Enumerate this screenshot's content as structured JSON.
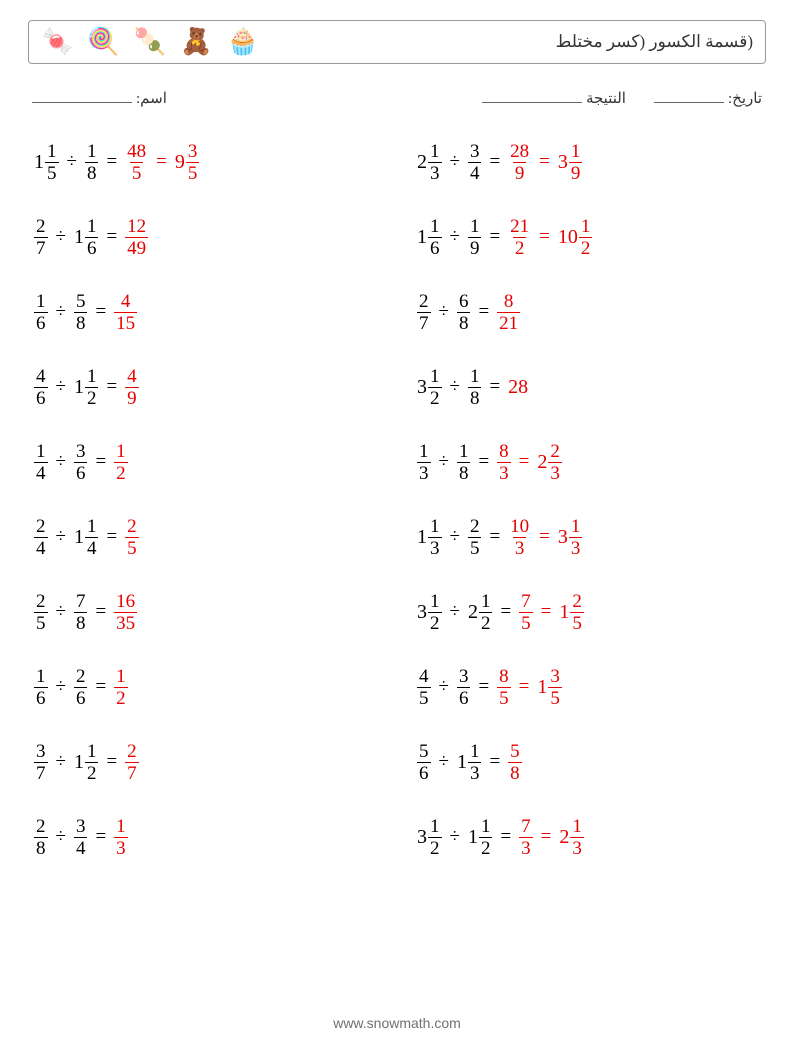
{
  "header": {
    "title": "(قسمة الكسور (كسر مختلط",
    "icons": [
      {
        "name": "candy-icon",
        "emoji": "🍬"
      },
      {
        "name": "wrapped-candy-icon",
        "emoji": "🍭"
      },
      {
        "name": "macaron-icon",
        "emoji": "🍡"
      },
      {
        "name": "teddy-bear-icon",
        "emoji": "🧸"
      },
      {
        "name": "cupcake-icon",
        "emoji": "🧁"
      }
    ]
  },
  "info": {
    "name_label": "اسم:",
    "date_label": "تاريخ:",
    "score_label": "النتيجة"
  },
  "footer": {
    "text": "www.snowmath.com"
  },
  "style": {
    "answer_color": "#e60000",
    "text_color": "#000000",
    "font_size_eq": 20
  },
  "division_sign": "÷",
  "equals_sign": "=",
  "problems": [
    [
      {
        "dividend": {
          "whole": 1,
          "num": 1,
          "den": 5
        },
        "divisor": {
          "num": 1,
          "den": 8
        },
        "answers": [
          {
            "num": 48,
            "den": 5
          },
          {
            "whole": 9,
            "num": 3,
            "den": 5
          }
        ]
      },
      {
        "dividend": {
          "whole": 2,
          "num": 1,
          "den": 3
        },
        "divisor": {
          "num": 3,
          "den": 4
        },
        "answers": [
          {
            "num": 28,
            "den": 9
          },
          {
            "whole": 3,
            "num": 1,
            "den": 9
          }
        ]
      }
    ],
    [
      {
        "dividend": {
          "num": 2,
          "den": 7
        },
        "divisor": {
          "whole": 1,
          "num": 1,
          "den": 6
        },
        "answers": [
          {
            "num": 12,
            "den": 49
          }
        ]
      },
      {
        "dividend": {
          "whole": 1,
          "num": 1,
          "den": 6
        },
        "divisor": {
          "num": 1,
          "den": 9
        },
        "answers": [
          {
            "num": 21,
            "den": 2
          },
          {
            "whole": 10,
            "num": 1,
            "den": 2
          }
        ]
      }
    ],
    [
      {
        "dividend": {
          "num": 1,
          "den": 6
        },
        "divisor": {
          "num": 5,
          "den": 8
        },
        "answers": [
          {
            "num": 4,
            "den": 15
          }
        ]
      },
      {
        "dividend": {
          "num": 2,
          "den": 7
        },
        "divisor": {
          "num": 6,
          "den": 8
        },
        "answers": [
          {
            "num": 8,
            "den": 21
          }
        ]
      }
    ],
    [
      {
        "dividend": {
          "num": 4,
          "den": 6
        },
        "divisor": {
          "whole": 1,
          "num": 1,
          "den": 2
        },
        "answers": [
          {
            "num": 4,
            "den": 9
          }
        ]
      },
      {
        "dividend": {
          "whole": 3,
          "num": 1,
          "den": 2
        },
        "divisor": {
          "num": 1,
          "den": 8
        },
        "answers": [
          {
            "int": 28
          }
        ]
      }
    ],
    [
      {
        "dividend": {
          "num": 1,
          "den": 4
        },
        "divisor": {
          "num": 3,
          "den": 6
        },
        "answers": [
          {
            "num": 1,
            "den": 2
          }
        ]
      },
      {
        "dividend": {
          "num": 1,
          "den": 3
        },
        "divisor": {
          "num": 1,
          "den": 8
        },
        "answers": [
          {
            "num": 8,
            "den": 3
          },
          {
            "whole": 2,
            "num": 2,
            "den": 3
          }
        ]
      }
    ],
    [
      {
        "dividend": {
          "num": 2,
          "den": 4
        },
        "divisor": {
          "whole": 1,
          "num": 1,
          "den": 4
        },
        "answers": [
          {
            "num": 2,
            "den": 5
          }
        ]
      },
      {
        "dividend": {
          "whole": 1,
          "num": 1,
          "den": 3
        },
        "divisor": {
          "num": 2,
          "den": 5
        },
        "answers": [
          {
            "num": 10,
            "den": 3
          },
          {
            "whole": 3,
            "num": 1,
            "den": 3
          }
        ]
      }
    ],
    [
      {
        "dividend": {
          "num": 2,
          "den": 5
        },
        "divisor": {
          "num": 7,
          "den": 8
        },
        "answers": [
          {
            "num": 16,
            "den": 35
          }
        ]
      },
      {
        "dividend": {
          "whole": 3,
          "num": 1,
          "den": 2
        },
        "divisor": {
          "whole": 2,
          "num": 1,
          "den": 2
        },
        "answers": [
          {
            "num": 7,
            "den": 5
          },
          {
            "whole": 1,
            "num": 2,
            "den": 5
          }
        ]
      }
    ],
    [
      {
        "dividend": {
          "num": 1,
          "den": 6
        },
        "divisor": {
          "num": 2,
          "den": 6
        },
        "answers": [
          {
            "num": 1,
            "den": 2
          }
        ]
      },
      {
        "dividend": {
          "num": 4,
          "den": 5
        },
        "divisor": {
          "num": 3,
          "den": 6
        },
        "answers": [
          {
            "num": 8,
            "den": 5
          },
          {
            "whole": 1,
            "num": 3,
            "den": 5
          }
        ]
      }
    ],
    [
      {
        "dividend": {
          "num": 3,
          "den": 7
        },
        "divisor": {
          "whole": 1,
          "num": 1,
          "den": 2
        },
        "answers": [
          {
            "num": 2,
            "den": 7
          }
        ]
      },
      {
        "dividend": {
          "num": 5,
          "den": 6
        },
        "divisor": {
          "whole": 1,
          "num": 1,
          "den": 3
        },
        "answers": [
          {
            "num": 5,
            "den": 8
          }
        ]
      }
    ],
    [
      {
        "dividend": {
          "num": 2,
          "den": 8
        },
        "divisor": {
          "num": 3,
          "den": 4
        },
        "answers": [
          {
            "num": 1,
            "den": 3
          }
        ]
      },
      {
        "dividend": {
          "whole": 3,
          "num": 1,
          "den": 2
        },
        "divisor": {
          "whole": 1,
          "num": 1,
          "den": 2
        },
        "answers": [
          {
            "num": 7,
            "den": 3
          },
          {
            "whole": 2,
            "num": 1,
            "den": 3
          }
        ]
      }
    ]
  ]
}
